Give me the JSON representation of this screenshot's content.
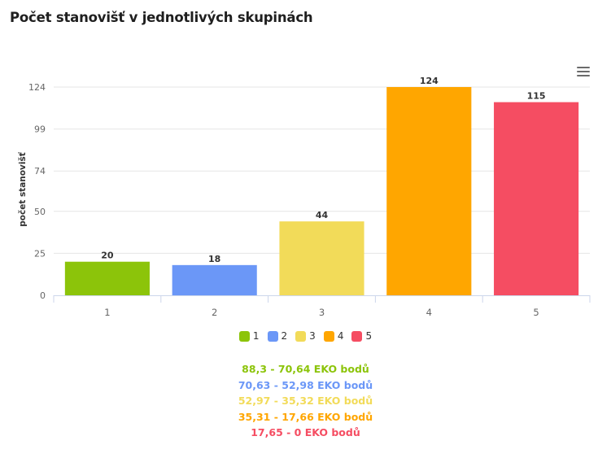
{
  "header": {
    "title": "Počet stanovišť v jednotlivých skupinách"
  },
  "icons": {
    "menu": "hamburger-menu-icon"
  },
  "colors": {
    "grid": "#e6e6e6",
    "axis": "#ccd6eb",
    "bars": [
      "#8cc40a",
      "#6b97f7",
      "#f2db59",
      "#ffa600",
      "#f54d62"
    ]
  },
  "chart_data": {
    "type": "bar",
    "categories": [
      "1",
      "2",
      "3",
      "4",
      "5"
    ],
    "values": [
      20,
      18,
      44,
      124,
      115
    ],
    "ylabel": "počet stanovišť",
    "xlabel": "",
    "yticks": [
      0,
      25,
      50,
      74,
      99,
      124
    ],
    "ylim": [
      0,
      124
    ],
    "grid": true,
    "legend_position": "bottom",
    "legend": [
      "1",
      "2",
      "3",
      "4",
      "5"
    ],
    "data_labels": true
  },
  "notes": [
    {
      "text": "88,3 - 70,64 EKO bodů",
      "color": "#8cc40a"
    },
    {
      "text": "70,63 - 52,98 EKO bodů",
      "color": "#6b97f7"
    },
    {
      "text": "52,97 - 35,32 EKO bodů",
      "color": "#f2db59"
    },
    {
      "text": "35,31 - 17,66 EKO bodů",
      "color": "#ffa600"
    },
    {
      "text": "17,65 - 0 EKO bodů",
      "color": "#f54d62"
    }
  ]
}
